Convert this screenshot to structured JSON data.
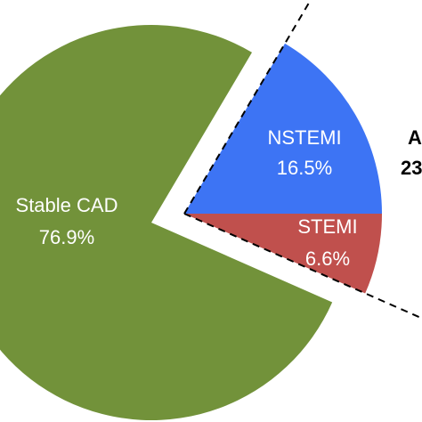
{
  "chart_data": {
    "type": "pie",
    "title": "",
    "slices": [
      {
        "label": "Stable CAD",
        "value": 76.9,
        "value_label": "76.9%",
        "color": "#72923a",
        "exploded": false
      },
      {
        "label": "NSTEMI",
        "value": 16.5,
        "value_label": "16.5%",
        "color": "#3d74f4",
        "exploded": true
      },
      {
        "label": "STEMI",
        "value": 6.6,
        "value_label": "6.6%",
        "color": "#c0504d",
        "exploded": true
      }
    ],
    "group": {
      "label": "A",
      "value_label": "23",
      "members": [
        "NSTEMI",
        "STEMI"
      ]
    },
    "legend": "none"
  }
}
